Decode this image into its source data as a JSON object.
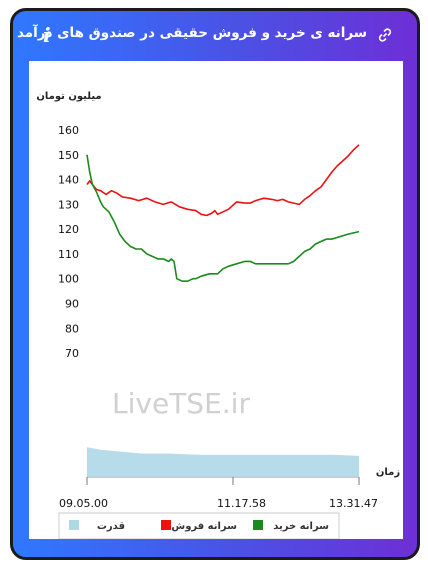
{
  "header": {
    "title": "سرانه ی خرید و فروش حقیقی در صندوق های درآمد ثابت",
    "info_glyph": "i",
    "link_icon": "link-icon",
    "info_icon": "info-icon"
  },
  "watermark": "LiveTSE.ir",
  "chart_data": {
    "type": "line",
    "ylabel": "میلیون تومان",
    "xlabel": "زمان",
    "yticks": [
      70,
      80,
      90,
      100,
      110,
      120,
      130,
      140,
      150,
      160
    ],
    "xticks": [
      "09.05.00",
      "11.17.58",
      "13.31.47"
    ],
    "ylim": [
      20,
      160
    ],
    "grid": false,
    "legend_position": "bottom",
    "legend": [
      {
        "key": "buy",
        "label": "سرانه خرید",
        "color": "#1a8a1a"
      },
      {
        "key": "sell",
        "label": "سرانه فروش",
        "color": "#ee1111"
      },
      {
        "key": "power",
        "label": "قدرت",
        "color": "#add8e6"
      }
    ],
    "series": [
      {
        "key": "sell",
        "color": "#ee1111",
        "kind": "line",
        "x": [
          0,
          0.01,
          0.02,
          0.035,
          0.05,
          0.07,
          0.09,
          0.11,
          0.13,
          0.16,
          0.19,
          0.22,
          0.25,
          0.28,
          0.31,
          0.34,
          0.37,
          0.4,
          0.42,
          0.44,
          0.46,
          0.47,
          0.48,
          0.5,
          0.52,
          0.55,
          0.58,
          0.6,
          0.62,
          0.65,
          0.68,
          0.7,
          0.72,
          0.74,
          0.76,
          0.78,
          0.8,
          0.82,
          0.84,
          0.86,
          0.88,
          0.9,
          0.92,
          0.94,
          0.96,
          0.98,
          1.0
        ],
        "y": [
          138,
          139.5,
          138,
          136,
          135.5,
          134,
          135.5,
          134.5,
          133,
          132.5,
          131.5,
          132.5,
          131,
          130,
          131,
          129,
          128,
          127.5,
          126,
          125.5,
          126.5,
          127.5,
          126,
          127,
          128,
          131,
          130.5,
          130.5,
          131.5,
          132.5,
          132,
          131.5,
          132,
          131,
          130.5,
          130,
          132,
          133.5,
          135.5,
          137,
          140,
          143,
          145.5,
          147.5,
          149.5,
          152,
          154
        ]
      },
      {
        "key": "buy",
        "color": "#1a8a1a",
        "kind": "line",
        "x": [
          0,
          0.01,
          0.02,
          0.035,
          0.05,
          0.06,
          0.08,
          0.1,
          0.12,
          0.14,
          0.16,
          0.18,
          0.2,
          0.22,
          0.24,
          0.26,
          0.28,
          0.3,
          0.31,
          0.32,
          0.33,
          0.35,
          0.37,
          0.39,
          0.4,
          0.42,
          0.45,
          0.48,
          0.5,
          0.52,
          0.55,
          0.58,
          0.6,
          0.62,
          0.65,
          0.68,
          0.7,
          0.72,
          0.74,
          0.76,
          0.78,
          0.8,
          0.82,
          0.84,
          0.86,
          0.88,
          0.9,
          0.93,
          0.96,
          0.98,
          1.0
        ],
        "y": [
          150,
          143,
          138,
          135,
          131,
          129,
          127,
          123,
          118,
          115,
          113,
          112,
          112,
          110,
          109,
          108,
          108,
          107,
          108,
          107,
          100,
          99,
          99,
          100,
          100,
          101,
          102,
          102,
          104,
          105,
          106,
          107,
          107,
          106,
          106,
          106,
          106,
          106,
          106,
          107,
          109,
          111,
          112,
          114,
          115,
          116,
          116,
          117,
          118,
          118.5,
          119
        ]
      },
      {
        "key": "power",
        "color": "#add8e6",
        "kind": "area",
        "x": [
          0,
          0.05,
          0.1,
          0.15,
          0.2,
          0.3,
          0.4,
          0.5,
          0.6,
          0.7,
          0.8,
          0.9,
          1.0
        ],
        "y": [
          32,
          31,
          30.5,
          30,
          29.5,
          29.5,
          29,
          29,
          29,
          29,
          29,
          29,
          28.5
        ]
      }
    ]
  }
}
